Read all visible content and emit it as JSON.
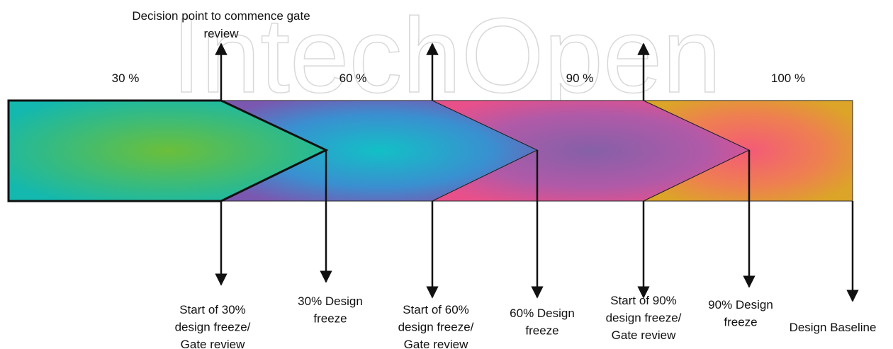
{
  "watermark": "IntechOpen",
  "top_label": {
    "lines": [
      "Decision point to commence gate",
      "review"
    ]
  },
  "phases": [
    "30 %",
    "60 %",
    "90 %",
    "100 %"
  ],
  "bottom_labels": [
    {
      "lines": [
        "Start of 30%",
        "design freeze/",
        "Gate review"
      ]
    },
    {
      "lines": [
        "30% Design",
        "freeze"
      ]
    },
    {
      "lines": [
        "Start of 60%",
        "design freeze/",
        "Gate review"
      ]
    },
    {
      "lines": [
        "60% Design",
        "freeze"
      ]
    },
    {
      "lines": [
        "Start of 90%",
        "design freeze/",
        "Gate review"
      ]
    },
    {
      "lines": [
        "90% Design",
        "freeze"
      ]
    },
    {
      "lines": [
        "Design Baseline"
      ]
    }
  ]
}
